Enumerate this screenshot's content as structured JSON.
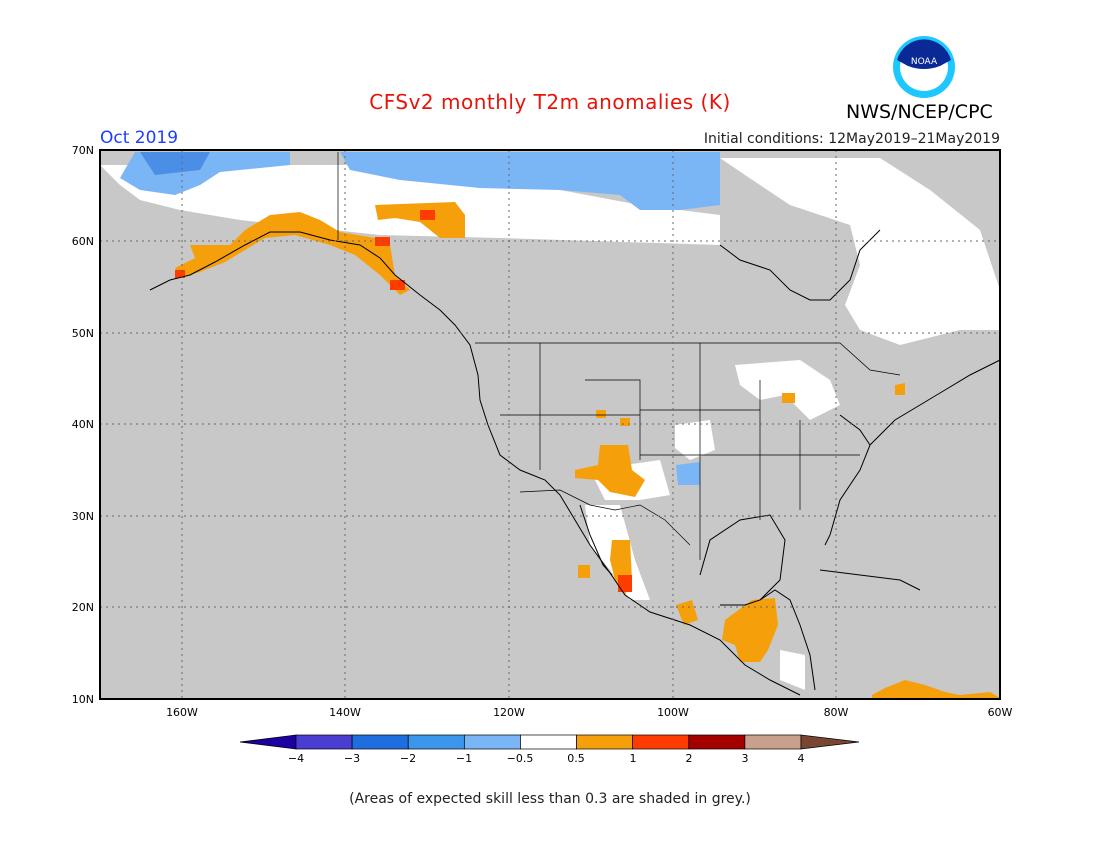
{
  "header": {
    "title": "CFSv2 monthly T2m anomalies (K)",
    "month": "Oct 2019",
    "initial_conditions": "Initial conditions: 12May2019–21May2019",
    "agency": "NWS/NCEP/CPC",
    "logo_text": "NOAA"
  },
  "map": {
    "lat_labels": [
      "70N",
      "60N",
      "50N",
      "40N",
      "30N",
      "20N",
      "10N"
    ],
    "lon_labels": [
      "160W",
      "140W",
      "120W",
      "100W",
      "80W",
      "60W"
    ],
    "lon_range": [
      -171,
      -60
    ],
    "lat_range": [
      10,
      70
    ],
    "grid": true,
    "background_grey": "#c8c8c8"
  },
  "colorbar": {
    "tick_labels": [
      "−4",
      "−3",
      "−2",
      "−1",
      "−0.5",
      "0.5",
      "1",
      "2",
      "3",
      "4"
    ],
    "colors": [
      "#1c00a0",
      "#4a3ed2",
      "#1f6ee0",
      "#3c96ee",
      "#7ab6f5",
      "#ffffff",
      "#f5a00a",
      "#ff3c00",
      "#a50000",
      "#c8a08c",
      "#784632"
    ]
  },
  "footer": {
    "note": "(Areas of expected skill less than 0.3 are shaded in grey.)"
  },
  "anomaly_regions": [
    {
      "name": "arctic-cold",
      "color": "#7ab6f5"
    },
    {
      "name": "alaska-warm",
      "color": "#f5a00a"
    },
    {
      "name": "southwest-warm",
      "color": "#f5a00a"
    },
    {
      "name": "central-america-warm",
      "color": "#f5a00a"
    },
    {
      "name": "hot-spots",
      "color": "#ff3c00"
    }
  ]
}
